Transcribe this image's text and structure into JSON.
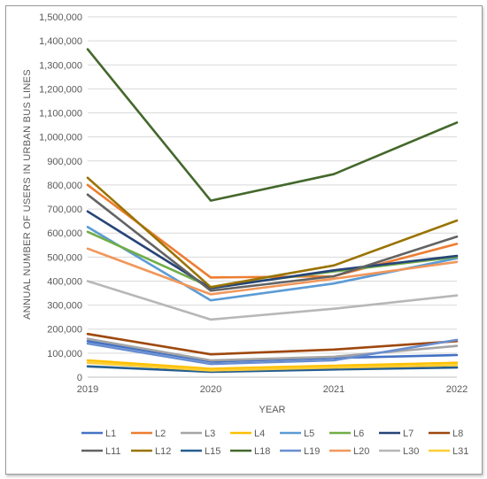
{
  "chart_data": {
    "type": "line",
    "title": "",
    "xlabel": "YEAR",
    "ylabel": "ANNUAL NUMBER OF USERS IN URBAN BUS LINES",
    "x": [
      "2019",
      "2020",
      "2021",
      "2022"
    ],
    "ylim": [
      0,
      1500000
    ],
    "ytick_step": 100000,
    "ytick_labels": [
      "0",
      "100,000",
      "200,000",
      "300,000",
      "400,000",
      "500,000",
      "600,000",
      "700,000",
      "800,000",
      "900,000",
      "1,000,000",
      "1,100,000",
      "1,200,000",
      "1,300,000",
      "1,400,000",
      "1,500,000"
    ],
    "grid": true,
    "legend_position": "bottom",
    "series": [
      {
        "name": "L1",
        "color": "#4472c4",
        "values": [
          150000,
          65000,
          80000,
          92000
        ]
      },
      {
        "name": "L2",
        "color": "#ed7d31",
        "values": [
          800000,
          415000,
          420000,
          555000
        ]
      },
      {
        "name": "L3",
        "color": "#a5a5a5",
        "values": [
          160000,
          70000,
          85000,
          130000
        ]
      },
      {
        "name": "L4",
        "color": "#ffc000",
        "values": [
          70000,
          35000,
          48000,
          60000
        ]
      },
      {
        "name": "L5",
        "color": "#5b9bd5",
        "values": [
          625000,
          320000,
          390000,
          495000
        ]
      },
      {
        "name": "L6",
        "color": "#70ad47",
        "values": [
          605000,
          375000,
          440000,
          500000
        ]
      },
      {
        "name": "L7",
        "color": "#264478",
        "values": [
          690000,
          370000,
          445000,
          505000
        ]
      },
      {
        "name": "L8",
        "color": "#9e480e",
        "values": [
          180000,
          95000,
          115000,
          150000
        ]
      },
      {
        "name": "L11",
        "color": "#636363",
        "values": [
          760000,
          360000,
          420000,
          585000
        ]
      },
      {
        "name": "L12",
        "color": "#997300",
        "values": [
          830000,
          375000,
          465000,
          652000
        ]
      },
      {
        "name": "L15",
        "color": "#255e91",
        "values": [
          45000,
          22000,
          32000,
          40000
        ]
      },
      {
        "name": "L18",
        "color": "#43682b",
        "values": [
          1365000,
          735000,
          845000,
          1060000
        ]
      },
      {
        "name": "L19",
        "color": "#698ed0",
        "values": [
          140000,
          55000,
          70000,
          155000
        ]
      },
      {
        "name": "L20",
        "color": "#f1975a",
        "values": [
          535000,
          345000,
          410000,
          480000
        ]
      },
      {
        "name": "L30",
        "color": "#b7b7b7",
        "values": [
          400000,
          240000,
          285000,
          340000
        ]
      },
      {
        "name": "L31",
        "color": "#ffcd33",
        "values": [
          60000,
          28000,
          40000,
          50000
        ]
      }
    ]
  }
}
